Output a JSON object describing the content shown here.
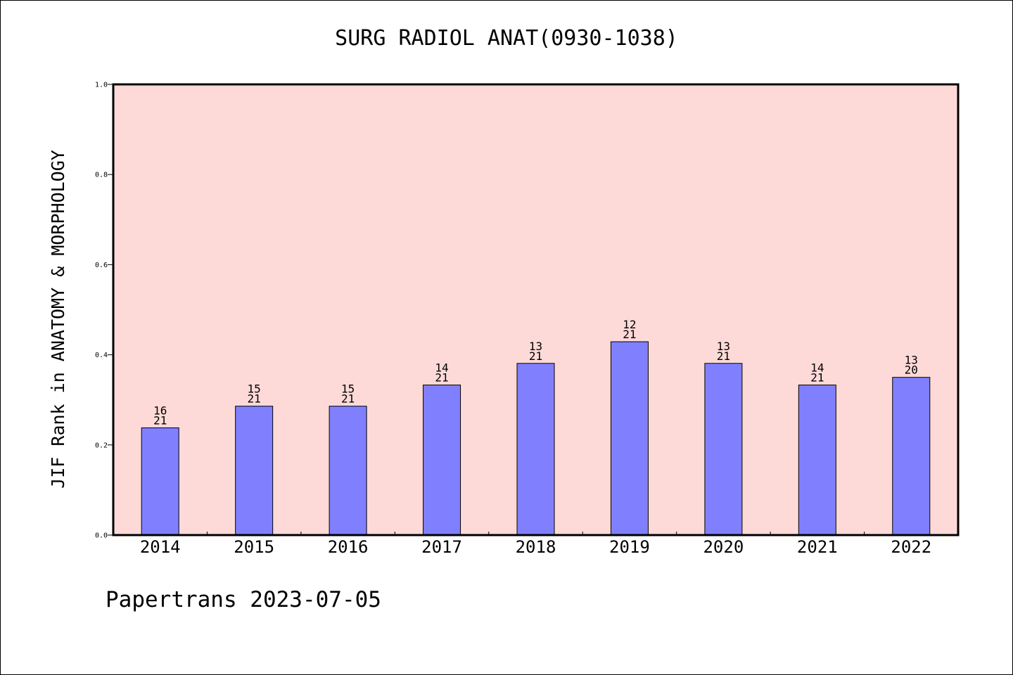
{
  "title": "SURG RADIOL ANAT(0930-1038)",
  "footer": "Papertrans 2023-07-05",
  "colors": {
    "plot_background": "#fddad8",
    "bar_fill": "#8080ff",
    "bar_stroke": "#000000"
  },
  "chart_data": {
    "type": "bar",
    "title": "SURG RADIOL ANAT(0930-1038)",
    "xlabel": "",
    "ylabel": "JIF Rank in ANATOMY & MORPHOLOGY",
    "ylim": [
      0,
      1.0
    ],
    "yticks": [
      0.0,
      0.2,
      0.4,
      0.6,
      0.8,
      1.0
    ],
    "ytick_labels": [
      "0.0",
      "0.2",
      "0.4",
      "0.6",
      "0.8",
      "1.0"
    ],
    "grid": false,
    "categories": [
      "2014",
      "2015",
      "2016",
      "2017",
      "2018",
      "2019",
      "2020",
      "2021",
      "2022"
    ],
    "values": [
      0.238,
      0.286,
      0.286,
      0.333,
      0.381,
      0.429,
      0.381,
      0.333,
      0.35
    ],
    "bar_labels": [
      {
        "rank": "16",
        "total": "21"
      },
      {
        "rank": "15",
        "total": "21"
      },
      {
        "rank": "15",
        "total": "21"
      },
      {
        "rank": "14",
        "total": "21"
      },
      {
        "rank": "13",
        "total": "21"
      },
      {
        "rank": "12",
        "total": "21"
      },
      {
        "rank": "13",
        "total": "21"
      },
      {
        "rank": "14",
        "total": "21"
      },
      {
        "rank": "13",
        "total": "20"
      }
    ]
  }
}
